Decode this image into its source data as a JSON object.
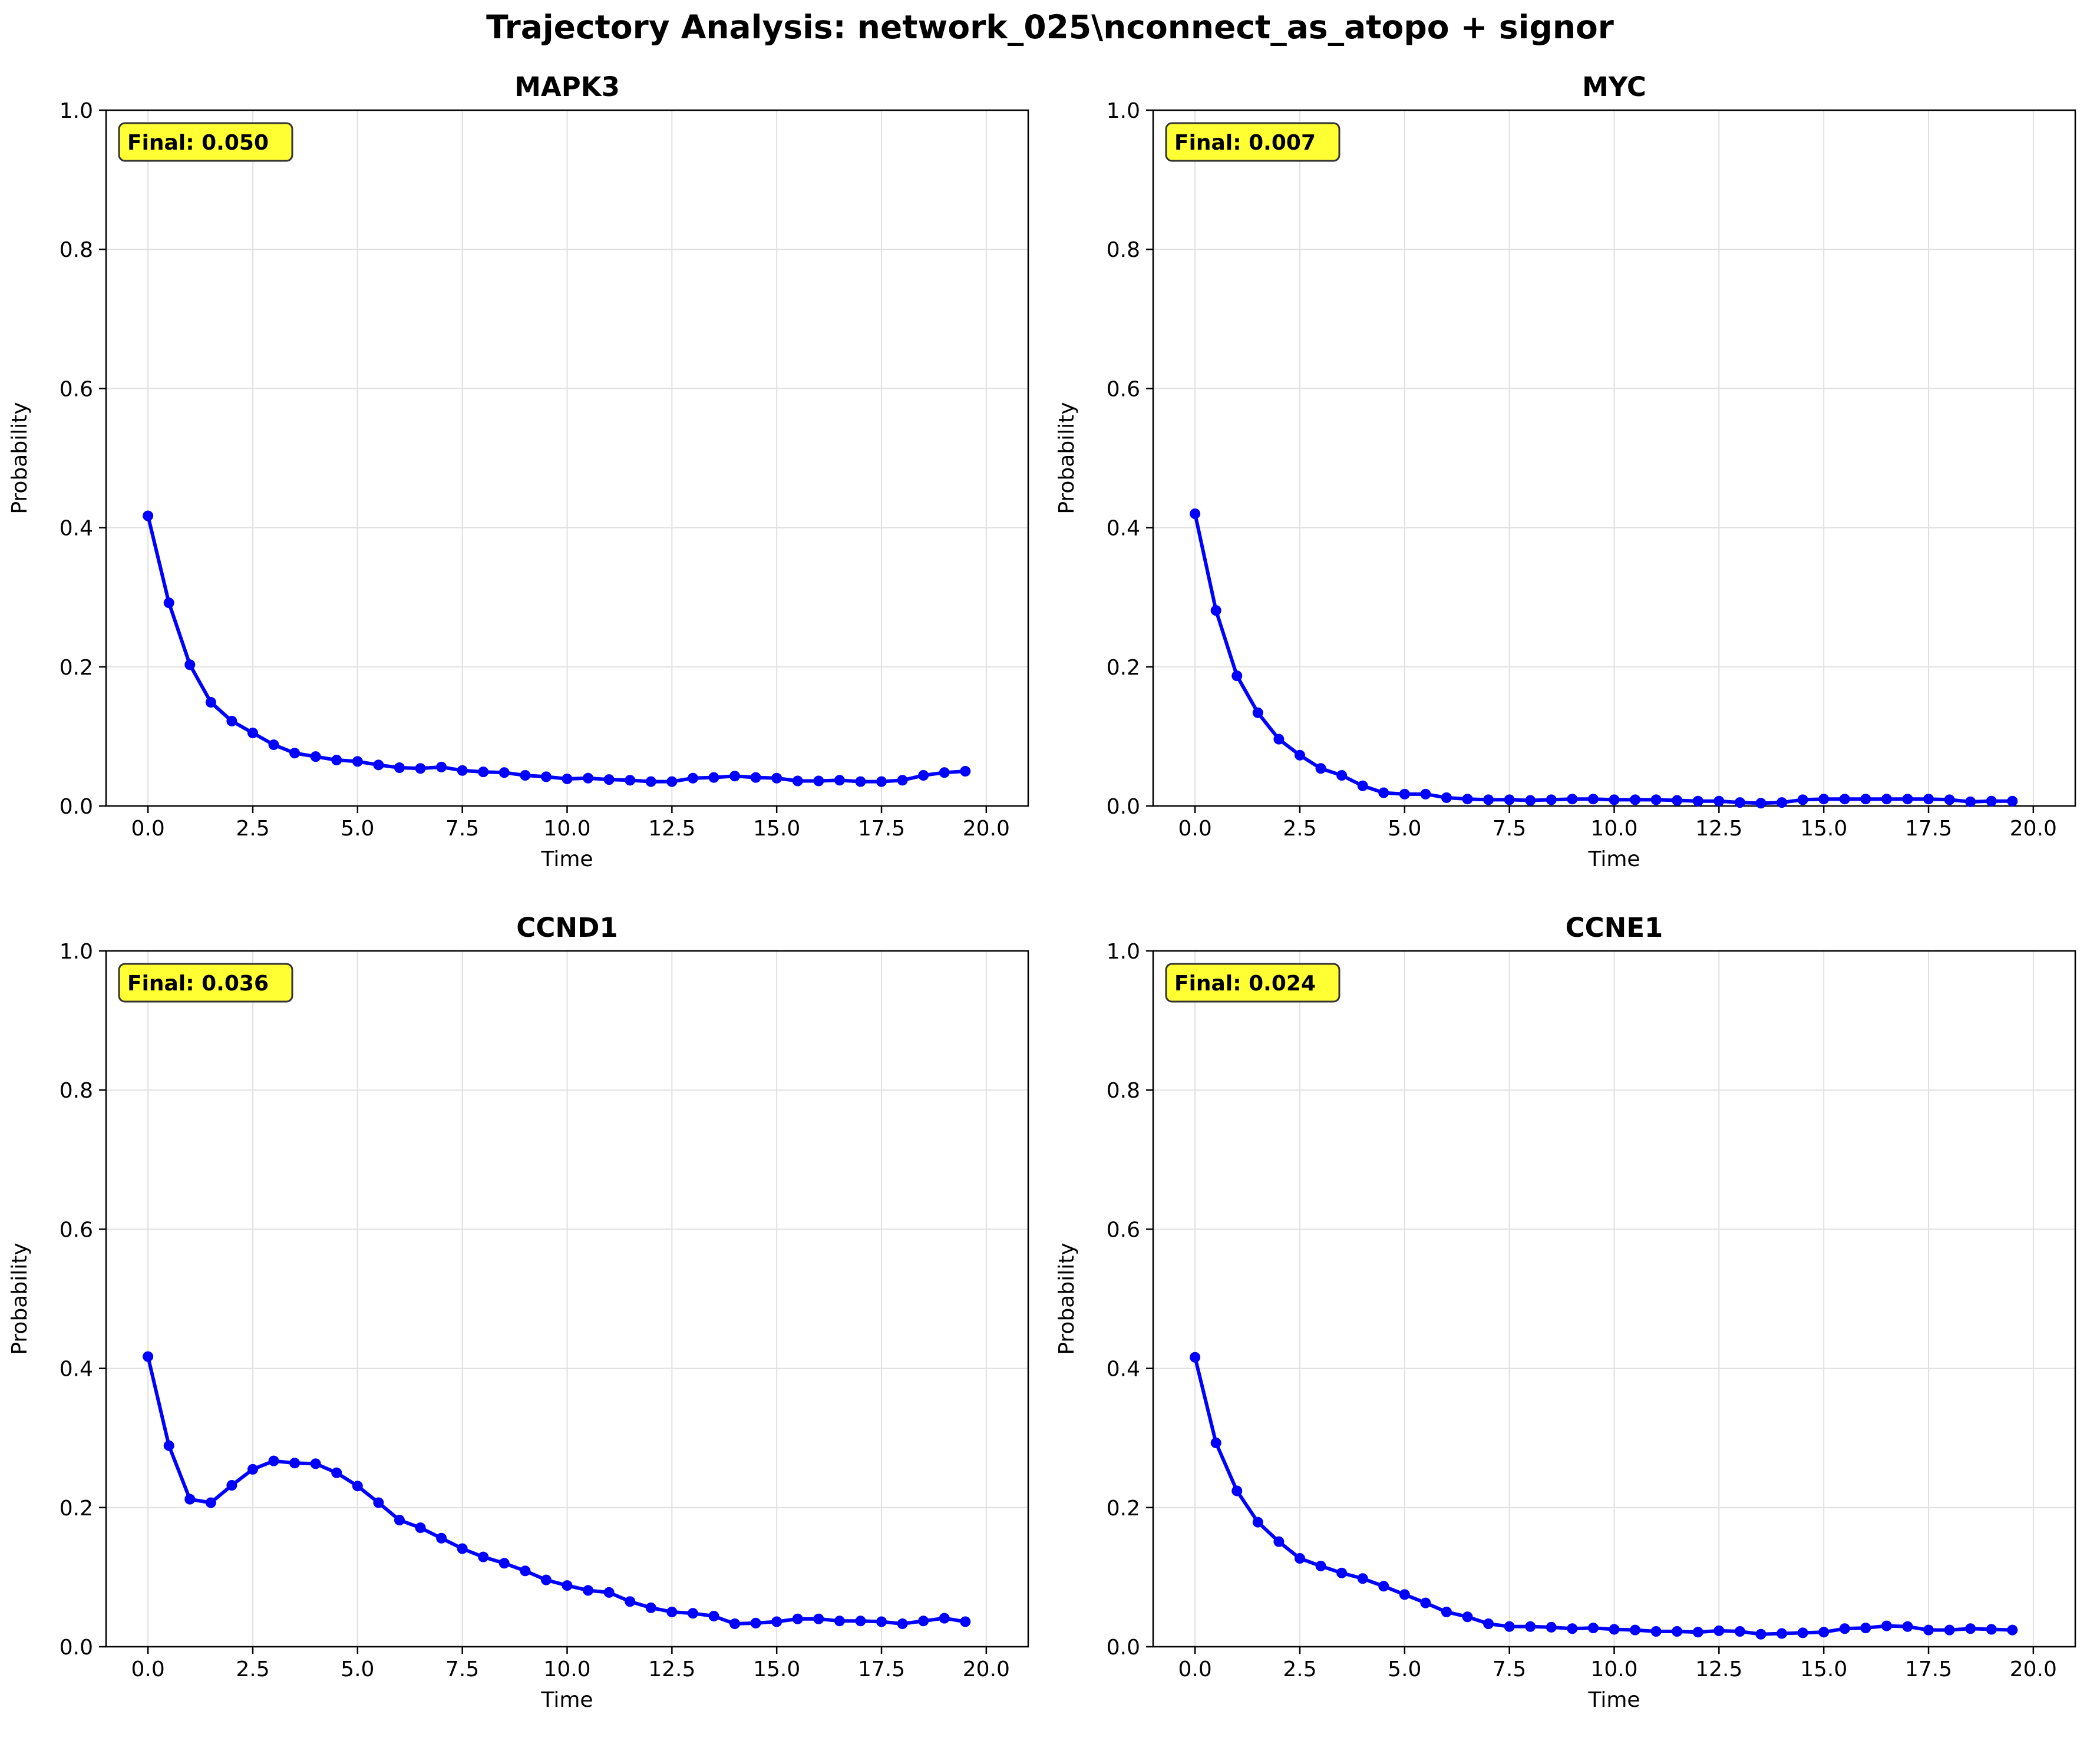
{
  "title": "Trajectory Analysis: network_025\\nconnect_as_atopo + signor",
  "colors": {
    "line": "#0000ff",
    "badge_fill": "#ffff33",
    "grid": "#e0e0e0"
  },
  "chart_data": [
    {
      "type": "line",
      "title": "MAPK3",
      "xlabel": "Time",
      "ylabel": "Probability",
      "xlim": [
        -1,
        21
      ],
      "ylim": [
        0,
        1
      ],
      "xticks": [
        "0.0",
        "2.5",
        "5.0",
        "7.5",
        "10.0",
        "12.5",
        "15.0",
        "17.5",
        "20.0"
      ],
      "yticks": [
        "0.0",
        "0.2",
        "0.4",
        "0.6",
        "0.8",
        "1.0"
      ],
      "grid": true,
      "annotation": "Final: 0.050",
      "x": [
        0,
        0.5,
        1,
        1.5,
        2,
        2.5,
        3,
        3.5,
        4,
        4.5,
        5,
        5.5,
        6,
        6.5,
        7,
        7.5,
        8,
        8.5,
        9,
        9.5,
        10,
        10.5,
        11,
        11.5,
        12,
        12.5,
        13,
        13.5,
        14,
        14.5,
        15,
        15.5,
        16,
        16.5,
        17,
        17.5,
        18,
        18.5,
        19,
        19.5
      ],
      "series": [
        {
          "values": [
            0.417,
            0.292,
            0.203,
            0.149,
            0.122,
            0.105,
            0.088,
            0.076,
            0.071,
            0.066,
            0.064,
            0.059,
            0.055,
            0.054,
            0.056,
            0.051,
            0.049,
            0.048,
            0.044,
            0.042,
            0.039,
            0.04,
            0.038,
            0.037,
            0.035,
            0.035,
            0.04,
            0.041,
            0.043,
            0.041,
            0.04,
            0.036,
            0.036,
            0.037,
            0.035,
            0.035,
            0.037,
            0.044,
            0.048,
            0.05
          ]
        }
      ]
    },
    {
      "type": "line",
      "title": "MYC",
      "xlabel": "Time",
      "ylabel": "Probability",
      "xlim": [
        -1,
        21
      ],
      "ylim": [
        0,
        1
      ],
      "xticks": [
        "0.0",
        "2.5",
        "5.0",
        "7.5",
        "10.0",
        "12.5",
        "15.0",
        "17.5",
        "20.0"
      ],
      "yticks": [
        "0.0",
        "0.2",
        "0.4",
        "0.6",
        "0.8",
        "1.0"
      ],
      "grid": true,
      "annotation": "Final: 0.007",
      "x": [
        0,
        0.5,
        1,
        1.5,
        2,
        2.5,
        3,
        3.5,
        4,
        4.5,
        5,
        5.5,
        6,
        6.5,
        7,
        7.5,
        8,
        8.5,
        9,
        9.5,
        10,
        10.5,
        11,
        11.5,
        12,
        12.5,
        13,
        13.5,
        14,
        14.5,
        15,
        15.5,
        16,
        16.5,
        17,
        17.5,
        18,
        18.5,
        19,
        19.5
      ],
      "series": [
        {
          "values": [
            0.42,
            0.281,
            0.187,
            0.134,
            0.096,
            0.073,
            0.054,
            0.044,
            0.029,
            0.019,
            0.017,
            0.017,
            0.012,
            0.01,
            0.009,
            0.009,
            0.008,
            0.009,
            0.01,
            0.01,
            0.009,
            0.009,
            0.009,
            0.008,
            0.007,
            0.007,
            0.005,
            0.004,
            0.005,
            0.009,
            0.01,
            0.01,
            0.01,
            0.01,
            0.01,
            0.01,
            0.009,
            0.006,
            0.007,
            0.007
          ]
        }
      ]
    },
    {
      "type": "line",
      "title": "CCND1",
      "xlabel": "Time",
      "ylabel": "Probability",
      "xlim": [
        -1,
        21
      ],
      "ylim": [
        0,
        1
      ],
      "xticks": [
        "0.0",
        "2.5",
        "5.0",
        "7.5",
        "10.0",
        "12.5",
        "15.0",
        "17.5",
        "20.0"
      ],
      "yticks": [
        "0.0",
        "0.2",
        "0.4",
        "0.6",
        "0.8",
        "1.0"
      ],
      "grid": true,
      "annotation": "Final: 0.036",
      "x": [
        0,
        0.5,
        1,
        1.5,
        2,
        2.5,
        3,
        3.5,
        4,
        4.5,
        5,
        5.5,
        6,
        6.5,
        7,
        7.5,
        8,
        8.5,
        9,
        9.5,
        10,
        10.5,
        11,
        11.5,
        12,
        12.5,
        13,
        13.5,
        14,
        14.5,
        15,
        15.5,
        16,
        16.5,
        17,
        17.5,
        18,
        18.5,
        19,
        19.5
      ],
      "series": [
        {
          "values": [
            0.417,
            0.289,
            0.212,
            0.207,
            0.232,
            0.255,
            0.267,
            0.264,
            0.263,
            0.25,
            0.231,
            0.207,
            0.182,
            0.171,
            0.156,
            0.141,
            0.129,
            0.12,
            0.109,
            0.096,
            0.088,
            0.081,
            0.078,
            0.065,
            0.056,
            0.05,
            0.048,
            0.044,
            0.033,
            0.034,
            0.036,
            0.04,
            0.04,
            0.037,
            0.037,
            0.036,
            0.033,
            0.037,
            0.041,
            0.036
          ]
        }
      ]
    },
    {
      "type": "line",
      "title": "CCNE1",
      "xlabel": "Time",
      "ylabel": "Probability",
      "xlim": [
        -1,
        21
      ],
      "ylim": [
        0,
        1
      ],
      "xticks": [
        "0.0",
        "2.5",
        "5.0",
        "7.5",
        "10.0",
        "12.5",
        "15.0",
        "17.5",
        "20.0"
      ],
      "yticks": [
        "0.0",
        "0.2",
        "0.4",
        "0.6",
        "0.8",
        "1.0"
      ],
      "grid": true,
      "annotation": "Final: 0.024",
      "x": [
        0,
        0.5,
        1,
        1.5,
        2,
        2.5,
        3,
        3.5,
        4,
        4.5,
        5,
        5.5,
        6,
        6.5,
        7,
        7.5,
        8,
        8.5,
        9,
        9.5,
        10,
        10.5,
        11,
        11.5,
        12,
        12.5,
        13,
        13.5,
        14,
        14.5,
        15,
        15.5,
        16,
        16.5,
        17,
        17.5,
        18,
        18.5,
        19,
        19.5
      ],
      "series": [
        {
          "values": [
            0.416,
            0.293,
            0.224,
            0.179,
            0.151,
            0.127,
            0.116,
            0.106,
            0.098,
            0.087,
            0.075,
            0.063,
            0.05,
            0.043,
            0.033,
            0.029,
            0.029,
            0.028,
            0.026,
            0.027,
            0.025,
            0.024,
            0.022,
            0.022,
            0.021,
            0.023,
            0.022,
            0.018,
            0.019,
            0.02,
            0.021,
            0.026,
            0.027,
            0.03,
            0.029,
            0.024,
            0.024,
            0.026,
            0.025,
            0.024
          ]
        }
      ]
    }
  ]
}
